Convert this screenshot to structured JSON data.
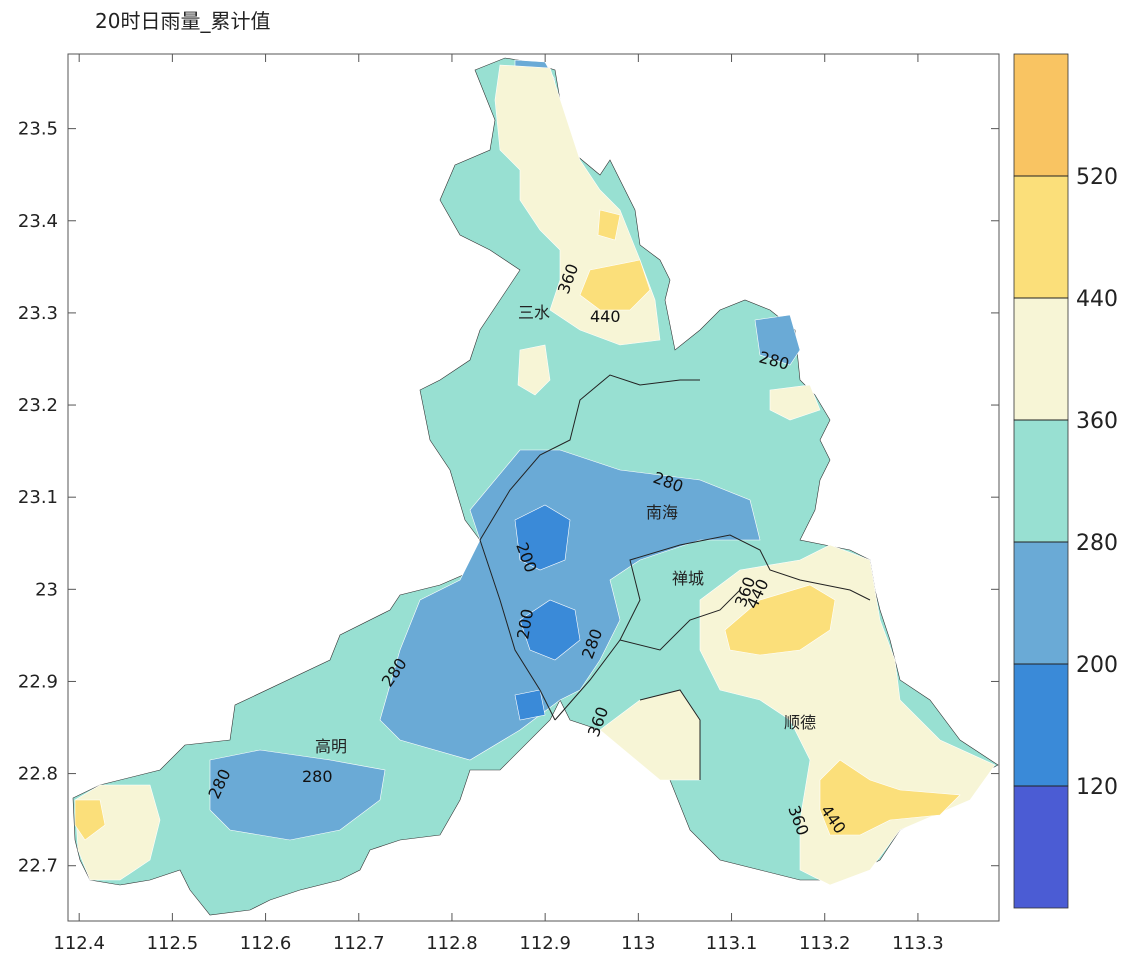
{
  "title": "20时日雨量_累计值",
  "x_axis": {
    "lim": [
      112.388,
      113.387
    ],
    "ticks": [
      112.4,
      112.5,
      112.6,
      112.7,
      112.8,
      112.9,
      113,
      113.1,
      113.2,
      113.3
    ]
  },
  "y_axis": {
    "lim": [
      22.64,
      23.581
    ],
    "ticks": [
      22.7,
      22.8,
      22.9,
      23,
      23.1,
      23.2,
      23.3,
      23.4,
      23.5
    ]
  },
  "colorbar": {
    "levels": [
      120,
      200,
      280,
      360,
      440,
      520
    ],
    "colors": [
      "#4b5cd4",
      "#3a8ad8",
      "#6aaad6",
      "#98e0d2",
      "#f7f5d6",
      "#fbdf7a",
      "#f9c462"
    ]
  },
  "places": [
    "三水",
    "南海",
    "禅城",
    "高明",
    "顺德"
  ],
  "contour_labels": [
    360,
    440,
    280,
    280,
    200,
    200,
    280,
    360,
    280,
    280,
    280,
    360,
    440,
    360,
    440
  ]
}
